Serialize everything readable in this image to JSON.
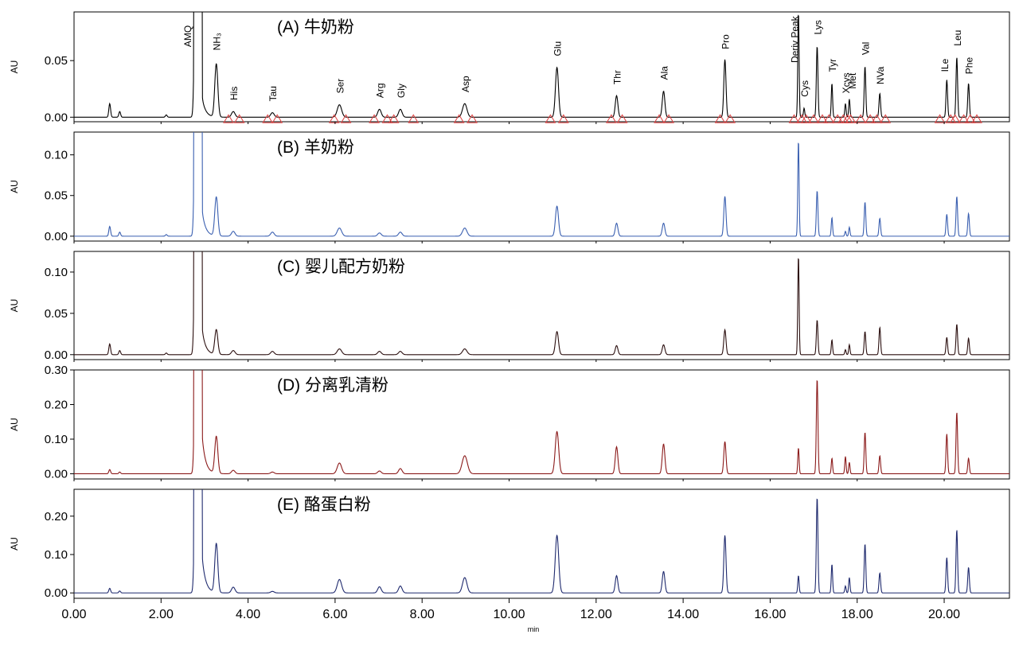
{
  "chart_data": {
    "type": "line",
    "x_label": "min",
    "x_range": [
      0,
      21.5
    ],
    "x_ticks": [
      0,
      2,
      4,
      6,
      8,
      10,
      12,
      14,
      16,
      18,
      20
    ],
    "x_tick_labels": [
      "0.00",
      "2.00",
      "4.00",
      "6.00",
      "8.00",
      "10.00",
      "12.00",
      "14.00",
      "16.00",
      "18.00",
      "20.00"
    ],
    "panels": [
      {
        "title": "(A) 牛奶粉",
        "ylabel": "AU",
        "color": "#000000",
        "ylim": [
          -0.004,
          0.093
        ],
        "y_ticks": [
          0,
          0.05
        ],
        "y_tick_labels": [
          "0.00",
          "0.05"
        ],
        "peaks": [
          {
            "t": 0.82,
            "h": 0.012,
            "w": 0.02
          },
          {
            "t": 1.05,
            "h": 0.005,
            "w": 0.02
          },
          {
            "t": 2.12,
            "h": 0.002,
            "w": 0.02
          },
          {
            "t": 2.83,
            "h": 0.6,
            "w": 0.035,
            "tail": 0.12
          },
          {
            "t": 3.27,
            "h": 0.047,
            "w": 0.035
          },
          {
            "t": 3.66,
            "h": 0.005,
            "w": 0.04
          },
          {
            "t": 4.56,
            "h": 0.004,
            "w": 0.04
          },
          {
            "t": 6.1,
            "h": 0.011,
            "w": 0.05
          },
          {
            "t": 7.02,
            "h": 0.007,
            "w": 0.04
          },
          {
            "t": 7.5,
            "h": 0.007,
            "w": 0.04
          },
          {
            "t": 8.98,
            "h": 0.012,
            "w": 0.05
          },
          {
            "t": 11.1,
            "h": 0.044,
            "w": 0.035
          },
          {
            "t": 12.47,
            "h": 0.019,
            "w": 0.03
          },
          {
            "t": 13.55,
            "h": 0.023,
            "w": 0.03
          },
          {
            "t": 14.96,
            "h": 0.051,
            "w": 0.025
          },
          {
            "t": 16.65,
            "h": 0.093,
            "w": 0.015
          },
          {
            "t": 16.78,
            "h": 0.008,
            "w": 0.015
          },
          {
            "t": 17.08,
            "h": 0.063,
            "w": 0.018
          },
          {
            "t": 17.42,
            "h": 0.03,
            "w": 0.015
          },
          {
            "t": 17.73,
            "h": 0.012,
            "w": 0.015
          },
          {
            "t": 17.82,
            "h": 0.016,
            "w": 0.015
          },
          {
            "t": 18.18,
            "h": 0.045,
            "w": 0.018
          },
          {
            "t": 18.52,
            "h": 0.021,
            "w": 0.018
          },
          {
            "t": 20.06,
            "h": 0.033,
            "w": 0.018
          },
          {
            "t": 20.29,
            "h": 0.053,
            "w": 0.018
          },
          {
            "t": 20.56,
            "h": 0.03,
            "w": 0.018
          }
        ],
        "annotations": [
          {
            "label": "AMQ",
            "t": 2.6,
            "y": 0.062
          },
          {
            "label": "NH₃",
            "t": 3.27,
            "y": 0.059
          },
          {
            "label": "His",
            "t": 3.66,
            "y": 0.015
          },
          {
            "label": "Tau",
            "t": 4.56,
            "y": 0.014
          },
          {
            "label": "Ser",
            "t": 6.1,
            "y": 0.021
          },
          {
            "label": "Arg",
            "t": 7.02,
            "y": 0.017
          },
          {
            "label": "Gly",
            "t": 7.5,
            "y": 0.017
          },
          {
            "label": "Asp",
            "t": 8.98,
            "y": 0.022
          },
          {
            "label": "Glu",
            "t": 11.1,
            "y": 0.054
          },
          {
            "label": "Thr",
            "t": 12.47,
            "y": 0.029
          },
          {
            "label": "Ala",
            "t": 13.55,
            "y": 0.033
          },
          {
            "label": "Pro",
            "t": 14.96,
            "y": 0.06
          },
          {
            "label": "Deriv Peak",
            "t": 16.55,
            "y": 0.048
          },
          {
            "label": "Cys",
            "t": 16.78,
            "y": 0.018
          },
          {
            "label": "Lys",
            "t": 17.08,
            "y": 0.073
          },
          {
            "label": "Tyr",
            "t": 17.42,
            "y": 0.04
          },
          {
            "label": "Xcys",
            "t": 17.73,
            "y": 0.021
          },
          {
            "label": "Met",
            "t": 17.88,
            "y": 0.025
          },
          {
            "label": "Val",
            "t": 18.18,
            "y": 0.055
          },
          {
            "label": "NVa",
            "t": 18.52,
            "y": 0.029
          },
          {
            "label": "ILe",
            "t": 20.0,
            "y": 0.04
          },
          {
            "label": "Leu",
            "t": 20.29,
            "y": 0.063
          },
          {
            "label": "Phe",
            "t": 20.56,
            "y": 0.038
          }
        ],
        "markers": [
          3.55,
          3.8,
          4.45,
          4.67,
          5.98,
          6.25,
          6.9,
          7.2,
          7.35,
          7.8,
          8.85,
          9.15,
          10.95,
          11.25,
          12.35,
          12.6,
          13.45,
          13.67,
          14.85,
          15.08,
          16.55,
          16.73,
          16.83,
          17.0,
          17.2,
          17.35,
          17.55,
          17.68,
          17.78,
          17.85,
          18.08,
          18.3,
          18.45,
          18.65,
          19.9,
          20.15,
          20.25,
          20.45,
          20.6,
          20.75
        ]
      },
      {
        "title": "(B) 羊奶粉",
        "ylabel": "AU",
        "color": "#3a5fb0",
        "ylim": [
          -0.006,
          0.128
        ],
        "y_ticks": [
          0,
          0.05,
          0.1
        ],
        "y_tick_labels": [
          "0.00",
          "0.05",
          "0.10"
        ],
        "peaks": [
          {
            "t": 0.82,
            "h": 0.012,
            "w": 0.02
          },
          {
            "t": 1.05,
            "h": 0.005,
            "w": 0.02
          },
          {
            "t": 2.12,
            "h": 0.002,
            "w": 0.02
          },
          {
            "t": 2.83,
            "h": 0.8,
            "w": 0.035,
            "tail": 0.16
          },
          {
            "t": 3.27,
            "h": 0.048,
            "w": 0.035
          },
          {
            "t": 3.66,
            "h": 0.006,
            "w": 0.04
          },
          {
            "t": 4.56,
            "h": 0.005,
            "w": 0.04
          },
          {
            "t": 6.1,
            "h": 0.01,
            "w": 0.05
          },
          {
            "t": 7.02,
            "h": 0.004,
            "w": 0.04
          },
          {
            "t": 7.5,
            "h": 0.005,
            "w": 0.04
          },
          {
            "t": 8.98,
            "h": 0.01,
            "w": 0.05
          },
          {
            "t": 11.1,
            "h": 0.037,
            "w": 0.035
          },
          {
            "t": 12.47,
            "h": 0.016,
            "w": 0.03
          },
          {
            "t": 13.55,
            "h": 0.016,
            "w": 0.03
          },
          {
            "t": 14.96,
            "h": 0.049,
            "w": 0.025
          },
          {
            "t": 16.65,
            "h": 0.118,
            "w": 0.015
          },
          {
            "t": 17.08,
            "h": 0.056,
            "w": 0.018
          },
          {
            "t": 17.42,
            "h": 0.023,
            "w": 0.015
          },
          {
            "t": 17.73,
            "h": 0.006,
            "w": 0.015
          },
          {
            "t": 17.82,
            "h": 0.011,
            "w": 0.015
          },
          {
            "t": 18.18,
            "h": 0.042,
            "w": 0.018
          },
          {
            "t": 18.52,
            "h": 0.022,
            "w": 0.018
          },
          {
            "t": 20.06,
            "h": 0.027,
            "w": 0.018
          },
          {
            "t": 20.29,
            "h": 0.049,
            "w": 0.018
          },
          {
            "t": 20.56,
            "h": 0.028,
            "w": 0.018
          }
        ]
      },
      {
        "title": "(C) 婴儿配方奶粉",
        "ylabel": "AU",
        "color": "#2a0e0e",
        "ylim": [
          -0.006,
          0.125
        ],
        "y_ticks": [
          0,
          0.05,
          0.1
        ],
        "y_tick_labels": [
          "0.00",
          "0.05",
          "0.10"
        ],
        "peaks": [
          {
            "t": 0.82,
            "h": 0.013,
            "w": 0.02
          },
          {
            "t": 1.05,
            "h": 0.005,
            "w": 0.02
          },
          {
            "t": 2.12,
            "h": 0.002,
            "w": 0.02
          },
          {
            "t": 2.83,
            "h": 0.8,
            "w": 0.035,
            "tail": 0.16
          },
          {
            "t": 3.27,
            "h": 0.03,
            "w": 0.035
          },
          {
            "t": 3.66,
            "h": 0.005,
            "w": 0.04
          },
          {
            "t": 4.56,
            "h": 0.004,
            "w": 0.04
          },
          {
            "t": 6.1,
            "h": 0.007,
            "w": 0.05
          },
          {
            "t": 7.02,
            "h": 0.004,
            "w": 0.04
          },
          {
            "t": 7.5,
            "h": 0.004,
            "w": 0.04
          },
          {
            "t": 8.98,
            "h": 0.007,
            "w": 0.05
          },
          {
            "t": 11.1,
            "h": 0.028,
            "w": 0.035
          },
          {
            "t": 12.47,
            "h": 0.011,
            "w": 0.03
          },
          {
            "t": 13.55,
            "h": 0.012,
            "w": 0.03
          },
          {
            "t": 14.96,
            "h": 0.03,
            "w": 0.025
          },
          {
            "t": 16.65,
            "h": 0.12,
            "w": 0.015
          },
          {
            "t": 17.08,
            "h": 0.042,
            "w": 0.018
          },
          {
            "t": 17.42,
            "h": 0.018,
            "w": 0.015
          },
          {
            "t": 17.73,
            "h": 0.006,
            "w": 0.015
          },
          {
            "t": 17.82,
            "h": 0.012,
            "w": 0.015
          },
          {
            "t": 18.18,
            "h": 0.028,
            "w": 0.018
          },
          {
            "t": 18.52,
            "h": 0.033,
            "w": 0.018
          },
          {
            "t": 20.06,
            "h": 0.021,
            "w": 0.018
          },
          {
            "t": 20.29,
            "h": 0.037,
            "w": 0.018
          },
          {
            "t": 20.56,
            "h": 0.02,
            "w": 0.018
          }
        ]
      },
      {
        "title": "(D) 分离乳清粉",
        "ylabel": "AU",
        "color": "#8b1a1a",
        "ylim": [
          -0.015,
          0.3
        ],
        "y_ticks": [
          0,
          0.1,
          0.2,
          0.3
        ],
        "y_tick_labels": [
          "0.00",
          "0.10",
          "0.20",
          "0.30"
        ],
        "peaks": [
          {
            "t": 0.82,
            "h": 0.012,
            "w": 0.02
          },
          {
            "t": 1.05,
            "h": 0.005,
            "w": 0.02
          },
          {
            "t": 2.83,
            "h": 1.5,
            "w": 0.035,
            "tail": 0.3
          },
          {
            "t": 3.27,
            "h": 0.107,
            "w": 0.035
          },
          {
            "t": 3.66,
            "h": 0.01,
            "w": 0.04
          },
          {
            "t": 4.56,
            "h": 0.005,
            "w": 0.04
          },
          {
            "t": 6.1,
            "h": 0.031,
            "w": 0.05
          },
          {
            "t": 7.02,
            "h": 0.008,
            "w": 0.04
          },
          {
            "t": 7.5,
            "h": 0.015,
            "w": 0.04
          },
          {
            "t": 8.98,
            "h": 0.052,
            "w": 0.06
          },
          {
            "t": 11.1,
            "h": 0.122,
            "w": 0.04
          },
          {
            "t": 12.47,
            "h": 0.078,
            "w": 0.03
          },
          {
            "t": 13.55,
            "h": 0.086,
            "w": 0.03
          },
          {
            "t": 14.96,
            "h": 0.093,
            "w": 0.025
          },
          {
            "t": 16.65,
            "h": 0.075,
            "w": 0.015
          },
          {
            "t": 17.08,
            "h": 0.275,
            "w": 0.018
          },
          {
            "t": 17.42,
            "h": 0.045,
            "w": 0.015
          },
          {
            "t": 17.73,
            "h": 0.05,
            "w": 0.015
          },
          {
            "t": 17.82,
            "h": 0.033,
            "w": 0.015
          },
          {
            "t": 18.18,
            "h": 0.12,
            "w": 0.018
          },
          {
            "t": 18.52,
            "h": 0.052,
            "w": 0.018
          },
          {
            "t": 20.06,
            "h": 0.115,
            "w": 0.018
          },
          {
            "t": 20.29,
            "h": 0.178,
            "w": 0.018
          },
          {
            "t": 20.56,
            "h": 0.045,
            "w": 0.018
          }
        ]
      },
      {
        "title": "(E) 酪蛋白粉",
        "ylabel": "AU",
        "color": "#1f2a6e",
        "ylim": [
          -0.014,
          0.27
        ],
        "y_ticks": [
          0,
          0.1,
          0.2
        ],
        "y_tick_labels": [
          "0.00",
          "0.10",
          "0.20"
        ],
        "peaks": [
          {
            "t": 0.82,
            "h": 0.012,
            "w": 0.02
          },
          {
            "t": 1.05,
            "h": 0.005,
            "w": 0.02
          },
          {
            "t": 2.83,
            "h": 1.4,
            "w": 0.035,
            "tail": 0.28
          },
          {
            "t": 3.27,
            "h": 0.128,
            "w": 0.035
          },
          {
            "t": 3.66,
            "h": 0.015,
            "w": 0.04
          },
          {
            "t": 4.56,
            "h": 0.004,
            "w": 0.04
          },
          {
            "t": 6.1,
            "h": 0.035,
            "w": 0.05
          },
          {
            "t": 7.02,
            "h": 0.016,
            "w": 0.04
          },
          {
            "t": 7.5,
            "h": 0.018,
            "w": 0.04
          },
          {
            "t": 8.98,
            "h": 0.04,
            "w": 0.05
          },
          {
            "t": 11.1,
            "h": 0.15,
            "w": 0.04
          },
          {
            "t": 12.47,
            "h": 0.045,
            "w": 0.03
          },
          {
            "t": 13.55,
            "h": 0.056,
            "w": 0.03
          },
          {
            "t": 14.96,
            "h": 0.15,
            "w": 0.025
          },
          {
            "t": 16.65,
            "h": 0.045,
            "w": 0.015
          },
          {
            "t": 17.08,
            "h": 0.25,
            "w": 0.018
          },
          {
            "t": 17.42,
            "h": 0.075,
            "w": 0.015
          },
          {
            "t": 17.73,
            "h": 0.018,
            "w": 0.015
          },
          {
            "t": 17.82,
            "h": 0.04,
            "w": 0.015
          },
          {
            "t": 18.18,
            "h": 0.128,
            "w": 0.018
          },
          {
            "t": 18.52,
            "h": 0.052,
            "w": 0.018
          },
          {
            "t": 20.06,
            "h": 0.092,
            "w": 0.018
          },
          {
            "t": 20.29,
            "h": 0.165,
            "w": 0.018
          },
          {
            "t": 20.56,
            "h": 0.067,
            "w": 0.018
          }
        ]
      }
    ]
  }
}
